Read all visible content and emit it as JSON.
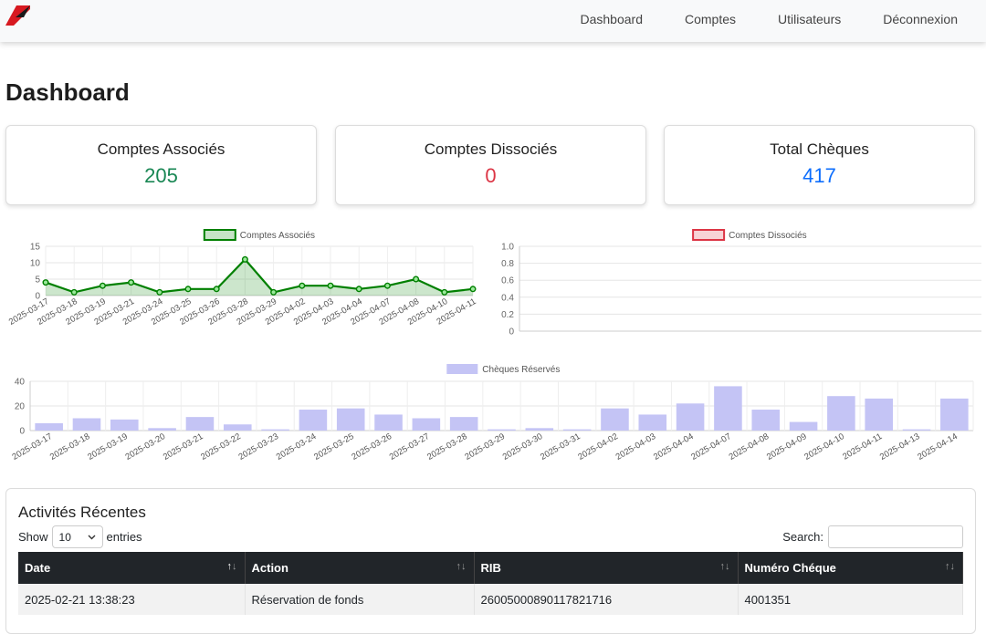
{
  "nav": {
    "links": [
      "Dashboard",
      "Comptes",
      "Utilisateurs",
      "Déconnexion"
    ]
  },
  "page": {
    "title": "Dashboard"
  },
  "cards": [
    {
      "label": "Comptes Associés",
      "value": "205",
      "color": "#198754"
    },
    {
      "label": "Comptes Dissociés",
      "value": "0",
      "color": "#dc3545"
    },
    {
      "label": "Total Chèques",
      "value": "417",
      "color": "#0d6efd"
    }
  ],
  "chart_data": [
    {
      "type": "area",
      "series": [
        {
          "name": "Comptes Associés",
          "values": [
            4,
            1,
            3,
            4,
            1,
            2,
            2,
            11,
            1,
            3,
            3,
            2,
            3,
            5,
            1,
            2
          ],
          "color": "#008000"
        }
      ],
      "x": [
        "2025-03-17",
        "2025-03-18",
        "2025-03-19",
        "2025-03-21",
        "2025-03-24",
        "2025-03-25",
        "2025-03-26",
        "2025-03-28",
        "2025-03-29",
        "2025-04-02",
        "2025-04-03",
        "2025-04-04",
        "2025-04-07",
        "2025-04-08",
        "2025-04-10",
        "2025-04-11"
      ],
      "ylim": [
        0,
        15
      ],
      "yticks": [
        "0",
        "5",
        "10",
        "15"
      ],
      "legend": "top"
    },
    {
      "type": "line",
      "series": [
        {
          "name": "Comptes Dissociés",
          "values": [],
          "color": "#dc3545"
        }
      ],
      "x": [],
      "ylim": [
        0,
        1
      ],
      "yticks": [
        "0",
        "0.2",
        "0.4",
        "0.6",
        "0.8",
        "1.0"
      ],
      "legend": "top"
    },
    {
      "type": "bar",
      "series": [
        {
          "name": "Chèques Réservés",
          "values": [
            6,
            10,
            9,
            2,
            11,
            5,
            1,
            17,
            18,
            13,
            10,
            11,
            1,
            2,
            1,
            18,
            13,
            22,
            36,
            17,
            7,
            28,
            26,
            1,
            26
          ],
          "color": "#c4c4f5"
        }
      ],
      "categories": [
        "2025-03-17",
        "2025-03-18",
        "2025-03-19",
        "2025-03-20",
        "2025-03-21",
        "2025-03-22",
        "2025-03-23",
        "2025-03-24",
        "2025-03-25",
        "2025-03-26",
        "2025-03-27",
        "2025-03-28",
        "2025-03-29",
        "2025-03-30",
        "2025-03-31",
        "2025-04-02",
        "2025-04-03",
        "2025-04-04",
        "2025-04-07",
        "2025-04-08",
        "2025-04-09",
        "2025-04-10",
        "2025-04-11",
        "2025-04-13",
        "2025-04-14"
      ],
      "ylim": [
        0,
        40
      ],
      "yticks": [
        "0",
        "20",
        "40"
      ],
      "legend": "top"
    }
  ],
  "activity": {
    "title": "Activités Récentes",
    "show_label": "Show",
    "entries_value": "10",
    "entries_label": "entries",
    "search_label": "Search:",
    "columns": [
      "Date",
      "Action",
      "RIB",
      "Numéro Chéque"
    ],
    "rows": [
      [
        "2025-02-21 13:38:23",
        "Réservation de fonds",
        "26005000890117821716",
        "4001351"
      ]
    ]
  }
}
